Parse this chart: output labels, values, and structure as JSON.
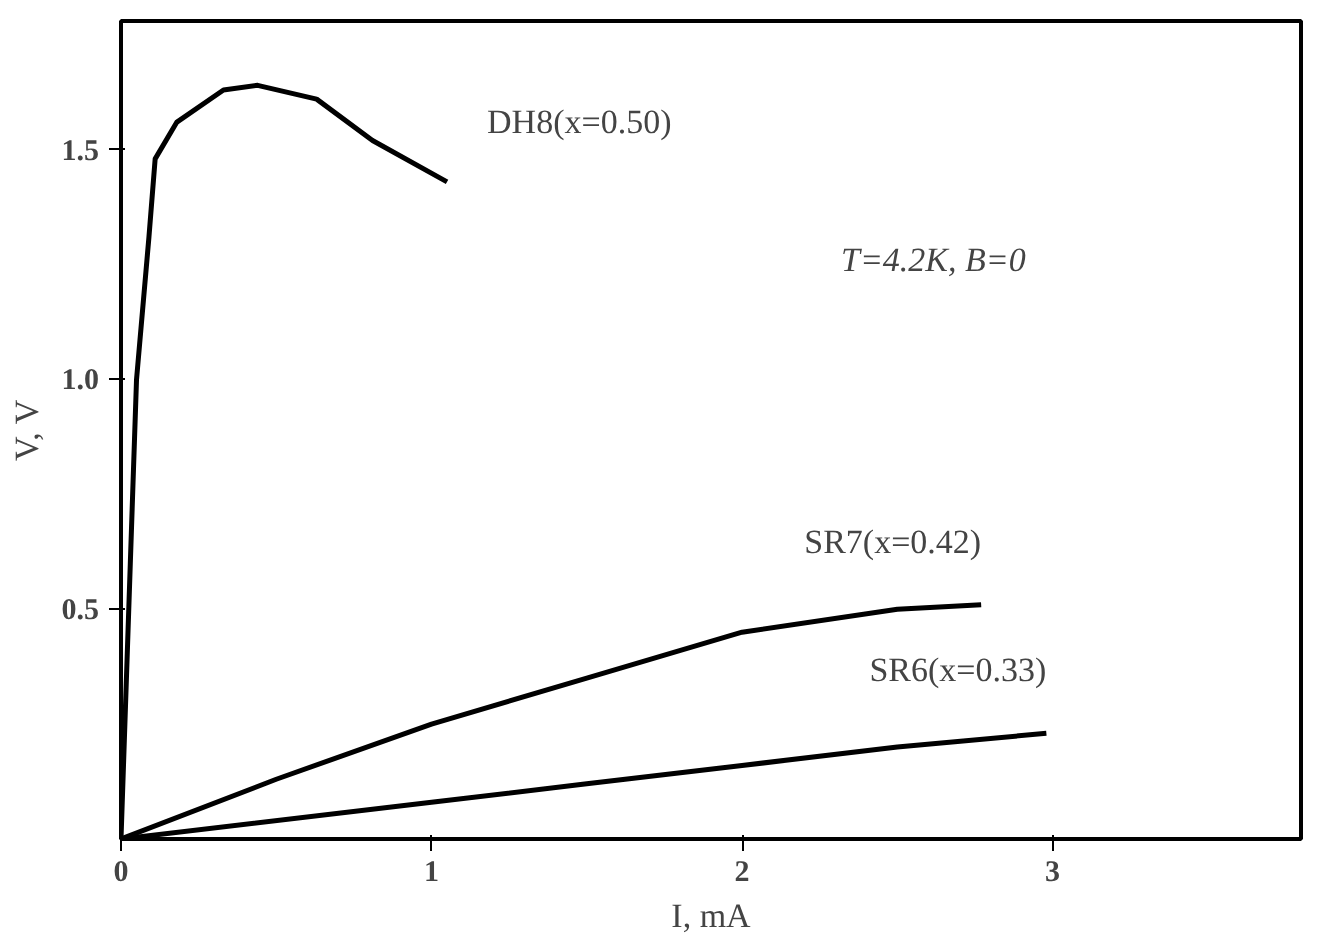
{
  "chart_data": {
    "type": "line",
    "xlabel": "I, mA",
    "ylabel": "V, V",
    "xlim": [
      0,
      3.8
    ],
    "ylim": [
      0,
      1.78
    ],
    "xticks": [
      0,
      1,
      2,
      3
    ],
    "yticks": [
      0.5,
      {
        "value": 1.0,
        "label": "1.0"
      },
      1.5
    ],
    "grid": false,
    "marker": "none",
    "line_style": "solid",
    "series": [
      {
        "name": "DH8(x=0.50)",
        "color": "#000000",
        "x": [
          0,
          0.03,
          0.05,
          0.09,
          0.11,
          0.18,
          0.33,
          0.44,
          0.63,
          0.81,
          1.05
        ],
        "values": [
          0,
          0.6,
          1.0,
          1.31,
          1.48,
          1.56,
          1.63,
          1.64,
          1.61,
          1.52,
          1.43
        ]
      },
      {
        "name": "SR7(x=0.42)",
        "color": "#000000",
        "x": [
          0,
          0.5,
          1,
          1.5,
          2,
          2.5,
          2.77
        ],
        "values": [
          0,
          0.13,
          0.25,
          0.35,
          0.45,
          0.5,
          0.51
        ]
      },
      {
        "name": "SR6(x=0.33)",
        "color": "#000000",
        "x": [
          0,
          1,
          1.5,
          2,
          2.5,
          2.98
        ],
        "values": [
          0,
          0.08,
          0.12,
          0.16,
          0.2,
          0.23
        ]
      }
    ],
    "annotations": [
      "T=4.2K, B=0"
    ]
  }
}
